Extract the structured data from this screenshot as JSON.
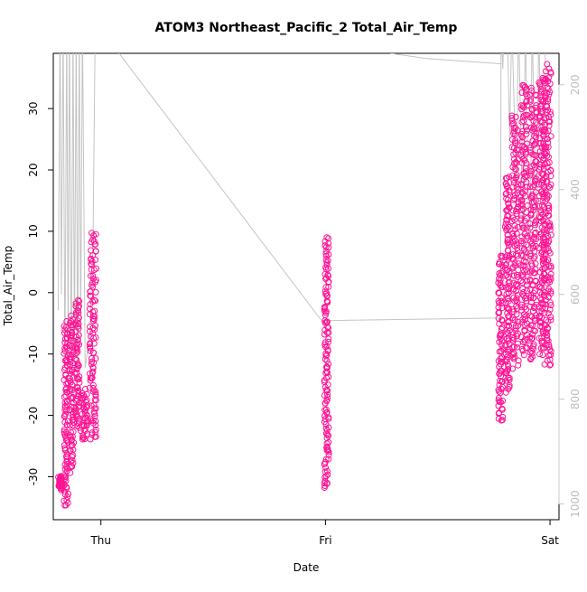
{
  "chart_data": {
    "type": "scatter",
    "title": "ATOM3 Northeast_Pacific_2 Total_Air_Temp",
    "xlabel": "Date",
    "ylabel": "Total_Air_Temp",
    "x_ticks": [
      "Thu",
      "Fri",
      "Sat"
    ],
    "x_tick_values": [
      0,
      1,
      2
    ],
    "xlim": [
      -0.212,
      2.04
    ],
    "ylim": [
      -37,
      39
    ],
    "y_ticks": [
      -30,
      -20,
      -10,
      0,
      10,
      20,
      30
    ],
    "right_axis": {
      "ticks": [
        200,
        400,
        600,
        800,
        1000
      ],
      "lim": [
        1030,
        140
      ],
      "color": "#bdbdbd"
    },
    "grid": false,
    "colors": {
      "points": "#ff1493",
      "secondary_line": "#c4c4c4"
    },
    "series": [
      {
        "marker": "open-circle",
        "clusters": [
          {
            "x": [
              -0.19,
              -0.17
            ],
            "y": [
              -32,
              -30
            ]
          },
          {
            "x": [
              -0.165,
              -0.145
            ],
            "y": [
              -35,
              -5
            ]
          },
          {
            "x": [
              -0.14,
              -0.12
            ],
            "y": [
              -29,
              -4
            ]
          },
          {
            "x": [
              -0.115,
              -0.095
            ],
            "y": [
              -22,
              -1
            ]
          },
          {
            "x": [
              -0.09,
              -0.06
            ],
            "y": [
              -24,
              -16
            ]
          },
          {
            "x": [
              -0.05,
              -0.02
            ],
            "y": [
              -24,
              10
            ]
          },
          {
            "x": [
              0.995,
              1.015
            ],
            "y": [
              -32,
              9
            ]
          },
          {
            "x": [
              1.77,
              1.79
            ],
            "y": [
              -21,
              6
            ]
          },
          {
            "x": [
              1.8,
              1.82
            ],
            "y": [
              -16,
              19
            ]
          },
          {
            "x": [
              1.83,
              1.86
            ],
            "y": [
              -12,
              29
            ]
          },
          {
            "x": [
              1.87,
              1.9
            ],
            "y": [
              -10,
              34
            ]
          },
          {
            "x": [
              1.91,
              1.94
            ],
            "y": [
              -11,
              33
            ]
          },
          {
            "x": [
              1.95,
              1.975
            ],
            "y": [
              -10,
              35
            ]
          },
          {
            "x": [
              1.975,
              2.005
            ],
            "y": [
              -12,
              37
            ]
          }
        ]
      }
    ],
    "secondary_series": {
      "axis": "right",
      "points": [
        [
          -0.19,
          630
        ],
        [
          -0.182,
          80
        ],
        [
          -0.176,
          600
        ],
        [
          -0.168,
          80
        ],
        [
          -0.16,
          740
        ],
        [
          -0.152,
          80
        ],
        [
          -0.146,
          700
        ],
        [
          -0.14,
          80
        ],
        [
          -0.132,
          760
        ],
        [
          -0.124,
          80
        ],
        [
          -0.118,
          720
        ],
        [
          -0.11,
          80
        ],
        [
          -0.104,
          780
        ],
        [
          -0.096,
          80
        ],
        [
          -0.09,
          690
        ],
        [
          -0.082,
          80
        ],
        [
          -0.07,
          740
        ],
        [
          -0.05,
          680
        ],
        [
          -0.035,
          500
        ],
        [
          -0.025,
          80
        ],
        [
          1.0,
          660
        ],
        [
          1.005,
          650
        ],
        [
          1.78,
          645
        ],
        [
          1.782,
          80
        ],
        [
          1.79,
          170
        ],
        [
          1.795,
          80
        ],
        [
          1.8,
          140
        ],
        [
          1.81,
          90
        ],
        [
          1.82,
          300
        ],
        [
          1.83,
          80
        ],
        [
          1.85,
          400
        ],
        [
          1.86,
          80
        ],
        [
          1.88,
          500
        ],
        [
          1.89,
          80
        ],
        [
          1.91,
          600
        ],
        [
          1.92,
          80
        ],
        [
          1.94,
          500
        ],
        [
          1.95,
          80
        ],
        [
          1.97,
          600
        ],
        [
          1.98,
          80
        ]
      ],
      "top_connector": [
        [
          1.29,
          140
        ],
        [
          1.45,
          150
        ],
        [
          1.785,
          160
        ]
      ]
    }
  }
}
